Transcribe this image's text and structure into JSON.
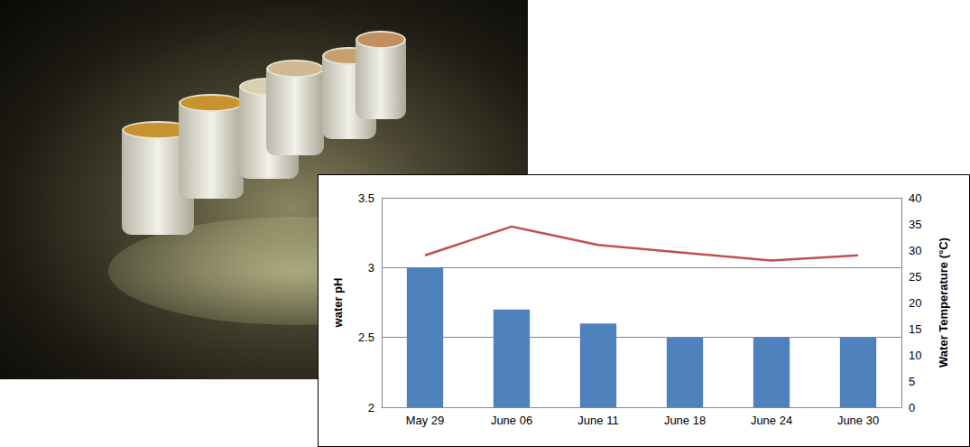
{
  "chart_data": {
    "type": "bar",
    "categories": [
      "May 29",
      "June 06",
      "June 11",
      "June 18",
      "June 24",
      "June 30"
    ],
    "y_label": "water pH",
    "y2_label": "Water Temperature (°C)",
    "ylim": [
      2,
      3.5
    ],
    "yticks": [
      2,
      2.5,
      3,
      3.5
    ],
    "y2lim": [
      0,
      40
    ],
    "y2ticks": [
      0,
      5,
      10,
      15,
      20,
      25,
      30,
      35,
      40
    ],
    "grid": true,
    "series": [
      {
        "type": "bar",
        "color": "#4f81bd",
        "values": [
          3.0,
          2.7,
          2.6,
          2.5,
          2.5,
          2.5
        ]
      },
      {
        "type": "line",
        "color": "#c0504d",
        "axis": "y2",
        "values": [
          29,
          34.5,
          31,
          29.5,
          28,
          29
        ]
      }
    ]
  }
}
